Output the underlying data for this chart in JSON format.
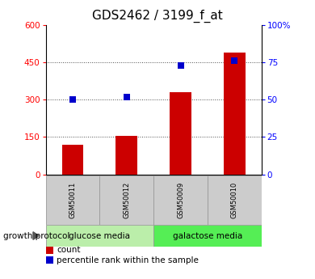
{
  "title": "GDS2462 / 3199_f_at",
  "samples": [
    "GSM50011",
    "GSM50012",
    "GSM50009",
    "GSM50010"
  ],
  "counts": [
    120,
    155,
    330,
    490
  ],
  "percentiles": [
    50,
    52,
    73,
    76
  ],
  "left_ylim": [
    0,
    600
  ],
  "right_ylim": [
    0,
    100
  ],
  "left_yticks": [
    0,
    150,
    300,
    450,
    600
  ],
  "right_yticks": [
    0,
    25,
    50,
    75,
    100
  ],
  "right_yticklabels": [
    "0",
    "25",
    "50",
    "75",
    "100%"
  ],
  "bar_color": "#cc0000",
  "dot_color": "#0000cc",
  "groups": [
    {
      "label": "glucose media",
      "indices": [
        0,
        1
      ],
      "bg": "#bbeeaa"
    },
    {
      "label": "galactose media",
      "indices": [
        2,
        3
      ],
      "bg": "#55ee55"
    }
  ],
  "sample_bg": "#cccccc",
  "group_label": "growth protocol",
  "legend_count_label": "count",
  "legend_pct_label": "percentile rank within the sample",
  "title_fontsize": 11,
  "tick_label_fontsize": 7.5,
  "bar_width": 0.4,
  "dot_size": 40
}
